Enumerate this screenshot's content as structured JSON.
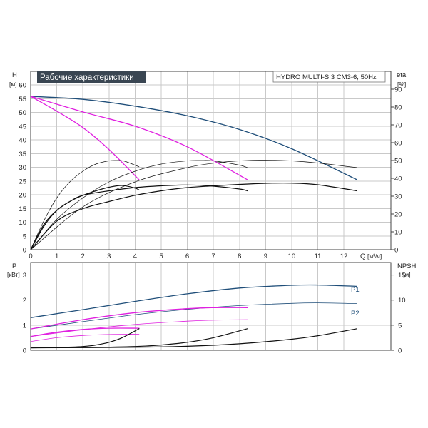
{
  "header": {
    "title": "Рабочие характеристики",
    "model": "HYDRO MULTI-S 3 CM3-6, 50Hz"
  },
  "axes": {
    "h_label": "H",
    "h_unit": "[м]",
    "eta_label": "eta",
    "eta_unit": "[%]",
    "q_label": "Q",
    "q_unit": "[м³/ч]",
    "p_label": "P",
    "p_unit": "[кВт]",
    "npsh_label": "NPSH",
    "npsh_unit": "[м]"
  },
  "colors": {
    "head_main": "#1f4e79",
    "head_reduced": "#e020e0",
    "efficiency": "#111111",
    "power_main": "#1f4e79",
    "power_reduced": "#e020e0",
    "npsh": "#111111",
    "title_bg": "#3a4652"
  },
  "chart_data": [
    {
      "type": "line",
      "name": "head-efficiency",
      "x_label": "Q [м³/ч]",
      "y_label": "H [м]",
      "y2_label": "eta [%]",
      "xlim": [
        0,
        13.8
      ],
      "ylim": [
        0,
        65
      ],
      "y2lim": [
        0,
        100
      ],
      "xticks": [
        0,
        1,
        2,
        3,
        4,
        5,
        6,
        7,
        8,
        9,
        10,
        11,
        12
      ],
      "yticks": [
        0,
        5,
        10,
        15,
        20,
        25,
        30,
        35,
        40,
        45,
        50,
        55,
        60
      ],
      "y2ticks": [
        0,
        10,
        20,
        30,
        40,
        50,
        60,
        70,
        80,
        90
      ],
      "grid": true,
      "series": [
        {
          "role": "head_main",
          "axis": "y",
          "width": 1.3,
          "x": [
            0,
            2,
            4,
            6,
            8,
            10,
            12.5
          ],
          "y": [
            55.9,
            54.8,
            52.3,
            48.8,
            43.8,
            36.8,
            25.5
          ]
        },
        {
          "role": "head_reduced",
          "axis": "y",
          "width": 1.3,
          "x": [
            0,
            2,
            4,
            6,
            8.3
          ],
          "y": [
            55.9,
            50.2,
            45,
            37.5,
            25.5
          ]
        },
        {
          "role": "head_reduced",
          "axis": "y",
          "width": 1.3,
          "x": [
            0,
            1,
            2,
            3,
            4.15
          ],
          "y": [
            55.9,
            50.5,
            44.5,
            36.5,
            25.5
          ]
        },
        {
          "role": "efficiency",
          "axis": "y2",
          "width": 1.2,
          "x": [
            0,
            1,
            2,
            3,
            4,
            5,
            6,
            7,
            8,
            9,
            10,
            11,
            12.5
          ],
          "y": [
            0,
            16,
            23,
            27,
            30.5,
            33,
            34.8,
            35.8,
            36.6,
            37.2,
            37.3,
            36.4,
            33
          ]
        },
        {
          "role": "efficiency",
          "axis": "y2",
          "width": 1.2,
          "x": [
            0,
            0.5,
            1,
            1.5,
            2,
            3,
            4,
            5,
            6,
            7,
            8,
            8.3
          ],
          "y": [
            0,
            13,
            22,
            27,
            30.5,
            33,
            34.8,
            35.8,
            36.3,
            35.6,
            34,
            33
          ]
        },
        {
          "role": "efficiency",
          "axis": "y2",
          "width": 1.2,
          "x": [
            0,
            0.5,
            1,
            1.5,
            2,
            2.5,
            3,
            3.5,
            4,
            4.15
          ],
          "y": [
            0,
            14,
            22,
            27,
            30.5,
            33,
            35,
            36,
            34.5,
            33.5
          ]
        },
        {
          "role": "efficiency",
          "axis": "y2",
          "width": 0.7,
          "x": [
            0,
            2,
            4,
            6,
            7,
            8,
            9,
            10,
            11,
            12.5
          ],
          "y": [
            0,
            24,
            38,
            46,
            48.5,
            49.8,
            50.2,
            49.8,
            48.6,
            46
          ]
        },
        {
          "role": "efficiency",
          "axis": "y2",
          "width": 0.7,
          "x": [
            0,
            1,
            2,
            3,
            4,
            5,
            6,
            6.5,
            7,
            8,
            8.3
          ],
          "y": [
            0,
            17,
            29,
            38,
            44,
            48,
            49.8,
            50,
            49.8,
            47.4,
            46
          ]
        },
        {
          "role": "efficiency",
          "axis": "y2",
          "width": 0.7,
          "x": [
            0,
            0.5,
            1,
            1.5,
            2,
            2.5,
            3,
            3.3,
            3.6,
            4.15
          ],
          "y": [
            0,
            16,
            29,
            38,
            44,
            48,
            49.8,
            50,
            49.6,
            46.5
          ]
        }
      ]
    },
    {
      "type": "line",
      "name": "power-npsh",
      "x_label": "Q [м³/ч]",
      "y_label": "P [кВт]",
      "y2_label": "NPSH [м]",
      "xlim": [
        0,
        13.8
      ],
      "ylim": [
        0,
        3.5
      ],
      "y2lim": [
        0,
        17.5
      ],
      "yticks": [
        0,
        1,
        2,
        3
      ],
      "y2ticks": [
        0,
        5,
        10,
        15
      ],
      "grid": true,
      "series": [
        {
          "name": "P1",
          "role": "power_main",
          "axis": "y",
          "width": 1.3,
          "x": [
            0,
            2,
            4,
            6,
            8,
            10,
            11,
            12.5
          ],
          "y": [
            1.3,
            1.62,
            1.95,
            2.25,
            2.48,
            2.59,
            2.6,
            2.55
          ]
        },
        {
          "name": "P2",
          "role": "power_main",
          "axis": "y",
          "width": 0.8,
          "x": [
            0,
            2,
            4,
            6,
            8,
            10,
            11,
            12.5
          ],
          "y": [
            0.85,
            1.14,
            1.42,
            1.63,
            1.78,
            1.87,
            1.89,
            1.86
          ]
        },
        {
          "role": "power_reduced",
          "axis": "y",
          "width": 1.3,
          "x": [
            0,
            2,
            4,
            6,
            7,
            8.3
          ],
          "y": [
            0.85,
            1.22,
            1.5,
            1.66,
            1.7,
            1.7
          ]
        },
        {
          "role": "power_reduced",
          "axis": "y",
          "width": 0.8,
          "x": [
            0,
            2,
            4,
            6,
            7,
            8.3
          ],
          "y": [
            0.55,
            0.82,
            1.03,
            1.16,
            1.2,
            1.22
          ]
        },
        {
          "role": "power_reduced",
          "axis": "y",
          "width": 1.3,
          "x": [
            0,
            1,
            2,
            3,
            4.15
          ],
          "y": [
            0.55,
            0.72,
            0.83,
            0.88,
            0.88
          ]
        },
        {
          "role": "power_reduced",
          "axis": "y",
          "width": 0.8,
          "x": [
            0,
            1,
            2,
            3,
            4.15
          ],
          "y": [
            0.35,
            0.5,
            0.59,
            0.63,
            0.64
          ]
        },
        {
          "role": "npsh",
          "axis": "y2",
          "width": 1.2,
          "x": [
            0,
            2,
            4,
            6,
            8,
            10,
            11,
            12.5
          ],
          "y": [
            0.5,
            0.52,
            0.6,
            0.8,
            1.3,
            2.2,
            2.9,
            4.3
          ]
        },
        {
          "role": "npsh",
          "axis": "y2",
          "width": 1.2,
          "x": [
            0,
            2,
            4,
            5,
            6,
            7,
            8.3
          ],
          "y": [
            0.5,
            0.55,
            0.75,
            1.05,
            1.6,
            2.5,
            4.3
          ]
        },
        {
          "role": "npsh",
          "axis": "y2",
          "width": 1.2,
          "x": [
            0,
            1,
            2,
            2.5,
            3,
            3.5,
            4.15
          ],
          "y": [
            0.5,
            0.55,
            0.75,
            1.05,
            1.6,
            2.5,
            4.3
          ]
        }
      ]
    }
  ]
}
